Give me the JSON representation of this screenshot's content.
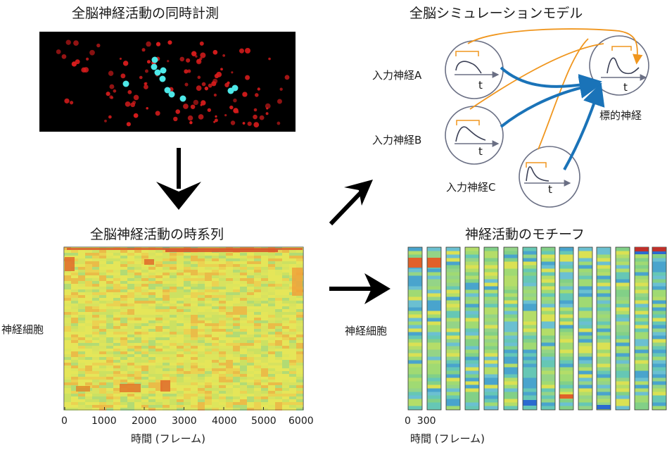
{
  "panels": {
    "imaging": {
      "title": "全脳神経活動の同時計測"
    },
    "timeseries": {
      "title": "全脳神経活動の時系列",
      "ylabel": "神経細胞",
      "xlabel": "時間 (フレーム)",
      "xticks": [
        "0",
        "1000",
        "2000",
        "3000",
        "4000",
        "5000",
        "6000"
      ]
    },
    "simulation": {
      "title": "全脳シミュレーションモデル",
      "neurons": [
        "入力神経A",
        "入力神経B",
        "入力神経C",
        "標的神経"
      ],
      "axis_t": "t"
    },
    "motif": {
      "title": "神経活動のモチーフ",
      "ylabel": "神経細胞",
      "xlabel": "時間 (フレーム)",
      "xticks": "0  300"
    }
  },
  "colors": {
    "arrow_blue": "#1a73b8",
    "arrow_orange": "#f0961e",
    "circle_stroke": "#6a6f84"
  }
}
